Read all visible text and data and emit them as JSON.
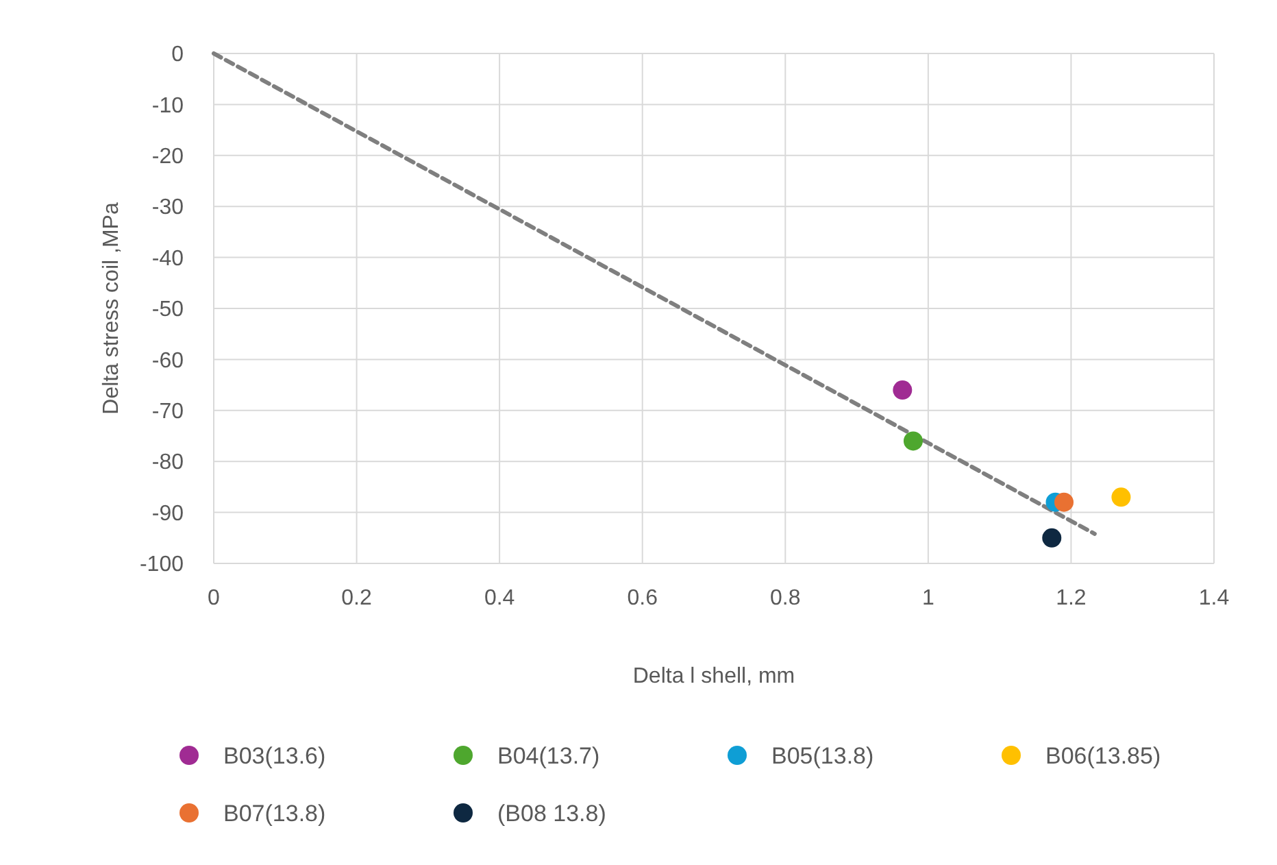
{
  "chart_data": {
    "type": "scatter",
    "xlabel": "Delta l shell, mm",
    "ylabel": "Delta stress coil ,MPa",
    "xlim": [
      0,
      1.4
    ],
    "xticks": [
      0,
      0.2,
      0.4,
      0.6,
      0.8,
      1,
      1.2,
      1.4
    ],
    "ylim": [
      -100,
      0
    ],
    "yticks": [
      -100,
      -90,
      -80,
      -70,
      -60,
      -50,
      -40,
      -30,
      -20,
      -10,
      0
    ],
    "grid": true,
    "legend": "bottom",
    "marker": "circle",
    "series": [
      {
        "type": "line",
        "color": "#7f7f7f",
        "line_style": "dashed",
        "marker": "none",
        "x": [
          0,
          1.233
        ],
        "values": [
          0,
          -94.2
        ]
      },
      {
        "name": "B03(13.6)",
        "color": "#a02b93",
        "x": [
          0.964
        ],
        "values": [
          -66
        ]
      },
      {
        "name": "B04(13.7)",
        "color": "#4ea72e",
        "x": [
          0.979
        ],
        "values": [
          -76
        ]
      },
      {
        "name": "B05(13.8)",
        "color": "#0f9ed5",
        "x": [
          1.178
        ],
        "values": [
          -88
        ]
      },
      {
        "name": "B06(13.85)",
        "color": "#ffc000",
        "x": [
          1.27
        ],
        "values": [
          -87
        ]
      },
      {
        "name": "B07(13.8)",
        "color": "#e97132",
        "x": [
          1.19
        ],
        "values": [
          -88
        ]
      },
      {
        "name": "(B08 13.8)",
        "color": "#0e2841",
        "x": [
          1.173
        ],
        "values": [
          -95
        ]
      }
    ]
  }
}
